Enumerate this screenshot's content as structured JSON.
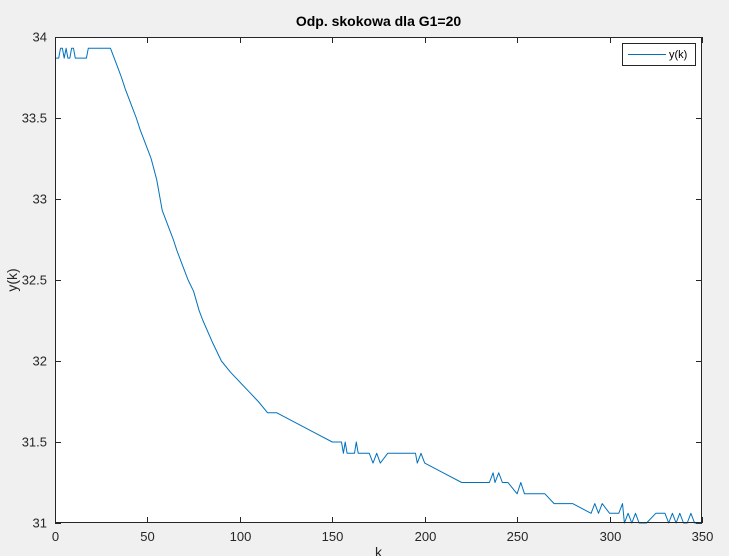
{
  "chart_data": {
    "type": "line",
    "title": "Odp. skokowa dla G1=20",
    "xlabel": "k",
    "ylabel": "y(k)",
    "xlim": [
      0,
      350
    ],
    "ylim": [
      31,
      34
    ],
    "xticks": [
      0,
      50,
      100,
      150,
      200,
      250,
      300,
      350
    ],
    "yticks": [
      31,
      31.5,
      32,
      32.5,
      33,
      33.5,
      34
    ],
    "grid": false,
    "legend_position": "top-right",
    "colors": {
      "line": "#0072BD",
      "axes": "#262626",
      "plot_bg": "#ffffff",
      "figure_bg": "#f0f0f0"
    },
    "series": [
      {
        "name": "y(k)",
        "x": [
          0,
          2,
          3,
          4,
          5,
          6,
          7,
          8,
          9,
          10,
          11,
          12,
          13,
          14,
          15,
          16,
          17,
          18,
          19,
          20,
          25,
          30,
          32,
          34,
          36,
          38,
          40,
          42,
          44,
          46,
          48,
          50,
          52,
          55,
          58,
          60,
          62,
          64,
          66,
          68,
          70,
          72,
          75,
          78,
          80,
          85,
          90,
          95,
          100,
          105,
          110,
          115,
          120,
          130,
          140,
          150,
          155,
          156,
          157,
          158,
          160,
          162,
          163,
          164,
          170,
          172,
          174,
          176,
          180,
          190,
          195,
          196,
          198,
          200,
          210,
          220,
          235,
          237,
          238,
          240,
          242,
          245,
          250,
          252,
          254,
          256,
          260,
          265,
          270,
          280,
          290,
          292,
          294,
          296,
          300,
          305,
          307,
          308,
          310,
          312,
          314,
          316,
          320,
          325,
          330,
          332,
          334,
          336,
          338,
          340,
          342,
          344,
          346,
          350
        ],
        "y": [
          33.87,
          33.87,
          33.93,
          33.93,
          33.87,
          33.93,
          33.87,
          33.87,
          33.93,
          33.93,
          33.87,
          33.87,
          33.87,
          33.87,
          33.87,
          33.87,
          33.87,
          33.93,
          33.93,
          33.93,
          33.93,
          33.93,
          33.87,
          33.81,
          33.75,
          33.68,
          33.62,
          33.56,
          33.5,
          33.43,
          33.37,
          33.31,
          33.25,
          33.12,
          32.93,
          32.87,
          32.81,
          32.75,
          32.68,
          32.62,
          32.56,
          32.5,
          32.43,
          32.31,
          32.25,
          32.12,
          32.0,
          31.93,
          31.87,
          31.81,
          31.75,
          31.68,
          31.68,
          31.62,
          31.56,
          31.5,
          31.5,
          31.43,
          31.5,
          31.43,
          31.43,
          31.43,
          31.5,
          31.43,
          31.43,
          31.37,
          31.43,
          31.37,
          31.43,
          31.43,
          31.43,
          31.37,
          31.43,
          31.37,
          31.31,
          31.25,
          31.25,
          31.31,
          31.25,
          31.31,
          31.25,
          31.25,
          31.18,
          31.25,
          31.18,
          31.18,
          31.18,
          31.18,
          31.12,
          31.12,
          31.06,
          31.12,
          31.06,
          31.12,
          31.06,
          31.06,
          31.12,
          31.0,
          31.06,
          31.0,
          31.06,
          31.0,
          31.0,
          31.06,
          31.06,
          31.0,
          31.06,
          31.0,
          31.06,
          31.0,
          31.0,
          31.06,
          31.0,
          31.0
        ]
      }
    ]
  }
}
